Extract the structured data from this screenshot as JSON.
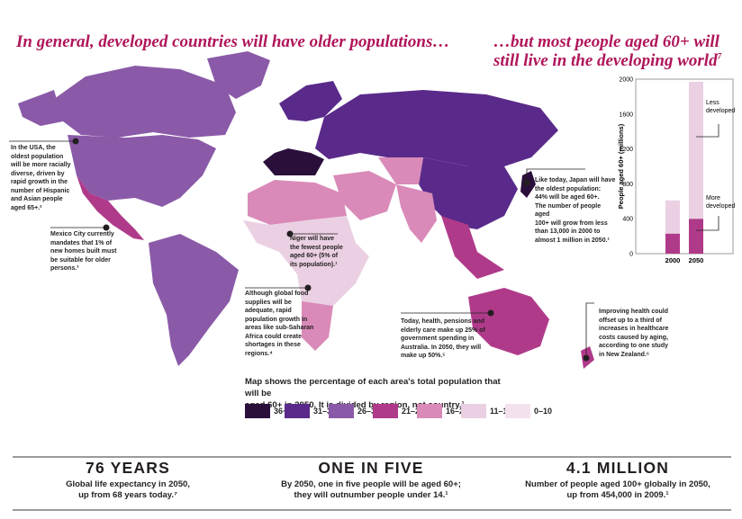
{
  "headline_left": "In general, developed countries will have older populations…",
  "headline_right_line1": "…but most people aged 60+ will",
  "headline_right_line2": "still live in the developing world",
  "headline_right_note": "7",
  "colors": {
    "36+": "#2b0f3b",
    "31-35": "#5a2a8a",
    "26-30": "#8a5aa8",
    "21-25": "#b03a8a",
    "16-20": "#d98ab8",
    "11-15": "#ead0e2",
    "0-10": "#f3e2ee",
    "accent": "#b0155a"
  },
  "callouts": {
    "usa": [
      "In the USA, the",
      "oldest population",
      "will be more racially",
      "diverse, driven by",
      "rapid growth in the",
      "number of Hispanic",
      "and Asian people",
      "aged 65+.²"
    ],
    "mexico": [
      "Mexico City currently",
      "mandates that 1% of",
      "new homes built must",
      "be suitable for older",
      "persons.³"
    ],
    "niger": [
      "Niger will have",
      "the fewest people",
      "aged 60+ (5% of",
      "its population).¹"
    ],
    "africa": [
      "Although global food",
      "supplies will be",
      "adequate, rapid",
      "population growth in",
      "areas like sub-Saharan",
      "Africa could create",
      "shortages in these",
      "regions.⁴"
    ],
    "japan": [
      "Like today, Japan will have",
      "the oldest population:",
      "44% will be aged 60+.",
      "The number of people aged",
      "100+ will grow from less",
      "than 13,000 in 2000 to",
      "almost 1 million in 2050.¹"
    ],
    "australia": [
      "Today, health, pensions and",
      "elderly care make up 25% of",
      "government spending in",
      "Australia. In 2050, they will",
      "make up 50%.⁵"
    ],
    "nz": [
      "Improving health could",
      "offset up to a third of",
      "increases in healthcare",
      "costs caused by aging,",
      "according to one study",
      "in New Zealand.⁶"
    ]
  },
  "legend": {
    "title_line1": "Map shows the percentage of each area's total population that will be",
    "title_line2": "aged 60+ in 2050. It is divided by region, not country.¹",
    "items": [
      "36+",
      "31–35",
      "26–30",
      "21–25",
      "16–20",
      "11–15",
      "0–10"
    ]
  },
  "chart_data": {
    "type": "bar",
    "stacked": true,
    "categories": [
      "2000",
      "2050"
    ],
    "series": [
      {
        "name": "More developed",
        "values": [
          230,
          400
        ]
      },
      {
        "name": "Less developed",
        "values": [
          380,
          1570
        ]
      }
    ],
    "ylabel": "People aged 60+ (millions)",
    "ylim": [
      0,
      2000
    ],
    "yticks": [
      "0",
      "400",
      "800",
      "1200",
      "1600",
      "2000"
    ],
    "labels": {
      "less": [
        "Less",
        "developed"
      ],
      "more": [
        "More",
        "developed"
      ]
    }
  },
  "stats": [
    {
      "big": "76 YEARS",
      "line1": "Global life expectancy in 2050,",
      "line2": "up from 68 years today.⁷"
    },
    {
      "big": "ONE IN FIVE",
      "line1": "By 2050, one in five people will be aged 60+;",
      "line2": "they will outnumber people under 14.¹"
    },
    {
      "big": "4.1 MILLION",
      "line1": "Number of people aged 100+ globally in 2050,",
      "line2": "up from 454,000 in 2009.¹"
    }
  ]
}
